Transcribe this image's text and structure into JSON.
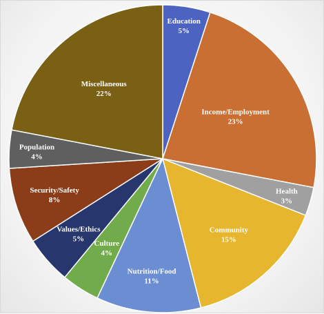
{
  "chart_data": {
    "type": "pie",
    "title": "",
    "slices": [
      {
        "label": "Education",
        "pct_label": "5%",
        "value": 5,
        "color": "#4d63c2"
      },
      {
        "label": "Income/Employment",
        "pct_label": "23%",
        "value": 23,
        "color": "#c96f33"
      },
      {
        "label": "Health",
        "pct_label": "3%",
        "value": 3,
        "color": "#a0a0a0"
      },
      {
        "label": "Community",
        "pct_label": "15%",
        "value": 15,
        "color": "#e6b62e"
      },
      {
        "label": "Nutrition/Food",
        "pct_label": "11%",
        "value": 11,
        "color": "#6a8ed1"
      },
      {
        "label": "Culture",
        "pct_label": "4%",
        "value": 4,
        "color": "#72ab4b"
      },
      {
        "label": "Values/Ethics",
        "pct_label": "5%",
        "value": 5,
        "color": "#27366c"
      },
      {
        "label": "Security/Safety",
        "pct_label": "8%",
        "value": 8,
        "color": "#8a3d18"
      },
      {
        "label": "Population",
        "pct_label": "4%",
        "value": 4,
        "color": "#5f5f5f"
      },
      {
        "label": "Miscellaneous",
        "pct_label": "22%",
        "value": 22,
        "color": "#7a6015"
      }
    ],
    "start_angle": "12 o'clock",
    "direction": "clockwise",
    "legend": "none",
    "labels": "inside, white, category name over percent"
  }
}
